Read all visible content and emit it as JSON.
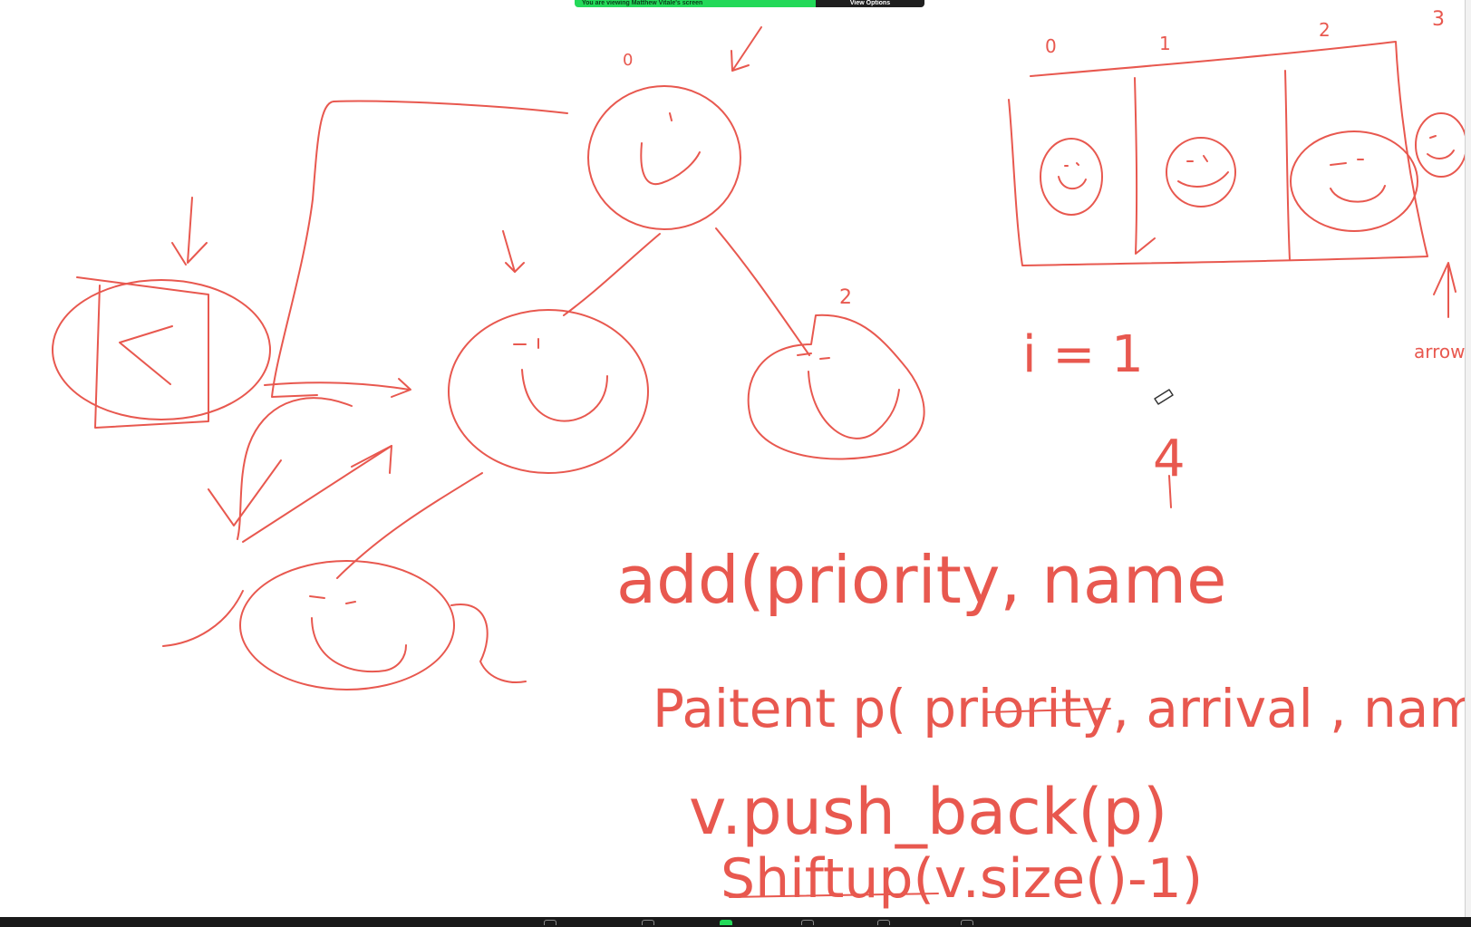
{
  "app": {
    "share_status": "You are viewing Matthew Vitale's screen",
    "view_options_label": "View Options"
  },
  "colors": {
    "ink": "#e8584f",
    "banner_green": "#23d959",
    "toolbar_bg": "#1a1a1a"
  },
  "whiteboard": {
    "array_indices": [
      "0",
      "1",
      "2",
      "3"
    ],
    "tree_node_labels": {
      "root": "0",
      "right_child": "2"
    },
    "arrow_note": "arrow",
    "loop_var": "i = 1",
    "loop_value": "4",
    "code_lines": [
      "add(priority, name",
      "Paitent p( priority, arrival , name)",
      "v.push_back(p)",
      "Shiftup(v.size()-1)"
    ]
  },
  "toolbar": {
    "icons": [
      "mic-icon",
      "video-icon",
      "share-screen-icon",
      "chat-icon",
      "record-icon",
      "reactions-icon"
    ]
  }
}
